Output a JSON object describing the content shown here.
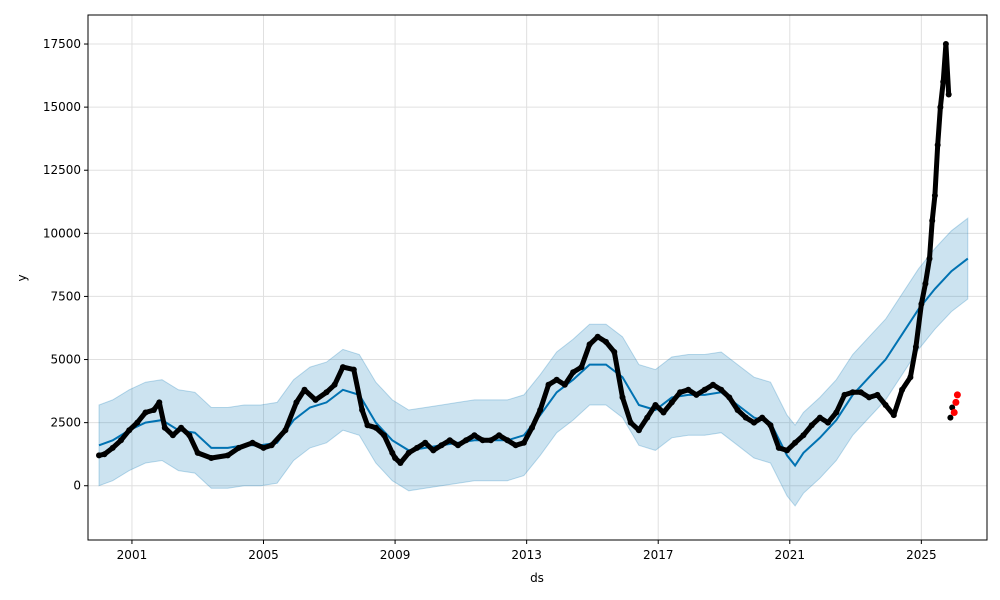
{
  "chart_data": {
    "type": "line",
    "xlabel": "ds",
    "ylabel": "y",
    "x_range": [
      "1999-09-01",
      "2026-12-31"
    ],
    "y_range": [
      -2150,
      18650
    ],
    "x_ticks": [
      "2001",
      "2005",
      "2009",
      "2013",
      "2017",
      "2021",
      "2025"
    ],
    "x_tick_dates": [
      "2001-01-01",
      "2005-01-01",
      "2009-01-01",
      "2013-01-01",
      "2017-01-01",
      "2021-01-01",
      "2025-01-01"
    ],
    "y_ticks": [
      0,
      2500,
      5000,
      7500,
      10000,
      12500,
      15000,
      17500
    ],
    "y_tick_labels": [
      "0",
      "2500",
      "5000",
      "7500",
      "10000",
      "12500",
      "15000",
      "17500"
    ],
    "grid": true,
    "colors": {
      "observed": "#000000",
      "forecast_line": "#0072B2",
      "interval": "#0072B2",
      "highlight": "#ff0000",
      "grid": "#e0e0e0"
    },
    "observed": [
      [
        "2000-01-01",
        1200
      ],
      [
        "2000-03-01",
        1250
      ],
      [
        "2000-06-01",
        1500
      ],
      [
        "2000-09-01",
        1800
      ],
      [
        "2000-12-01",
        2200
      ],
      [
        "2001-03-01",
        2500
      ],
      [
        "2001-06-01",
        2900
      ],
      [
        "2001-09-01",
        3000
      ],
      [
        "2001-11-01",
        3300
      ],
      [
        "2002-01-01",
        2300
      ],
      [
        "2002-04-01",
        2000
      ],
      [
        "2002-07-01",
        2300
      ],
      [
        "2002-10-01",
        2000
      ],
      [
        "2003-01-01",
        1300
      ],
      [
        "2003-06-01",
        1100
      ],
      [
        "2003-12-01",
        1200
      ],
      [
        "2004-04-01",
        1500
      ],
      [
        "2004-09-01",
        1700
      ],
      [
        "2005-01-01",
        1500
      ],
      [
        "2005-04-01",
        1600
      ],
      [
        "2005-09-01",
        2200
      ],
      [
        "2006-01-01",
        3300
      ],
      [
        "2006-04-01",
        3800
      ],
      [
        "2006-08-01",
        3400
      ],
      [
        "2006-12-01",
        3700
      ],
      [
        "2007-03-01",
        4000
      ],
      [
        "2007-06-01",
        4700
      ],
      [
        "2007-10-01",
        4600
      ],
      [
        "2008-01-01",
        3000
      ],
      [
        "2008-03-01",
        2400
      ],
      [
        "2008-06-01",
        2300
      ],
      [
        "2008-09-01",
        2000
      ],
      [
        "2008-12-01",
        1300
      ],
      [
        "2009-01-01",
        1100
      ],
      [
        "2009-03-01",
        900
      ],
      [
        "2009-06-01",
        1300
      ],
      [
        "2009-09-01",
        1500
      ],
      [
        "2009-12-01",
        1700
      ],
      [
        "2010-03-01",
        1400
      ],
      [
        "2010-06-01",
        1600
      ],
      [
        "2010-09-01",
        1800
      ],
      [
        "2010-12-01",
        1600
      ],
      [
        "2011-03-01",
        1800
      ],
      [
        "2011-06-01",
        2000
      ],
      [
        "2011-09-01",
        1800
      ],
      [
        "2011-12-01",
        1800
      ],
      [
        "2012-03-01",
        2000
      ],
      [
        "2012-06-01",
        1800
      ],
      [
        "2012-09-01",
        1600
      ],
      [
        "2012-12-01",
        1700
      ],
      [
        "2013-03-01",
        2300
      ],
      [
        "2013-06-01",
        3000
      ],
      [
        "2013-09-01",
        4000
      ],
      [
        "2013-12-01",
        4200
      ],
      [
        "2014-03-01",
        4000
      ],
      [
        "2014-06-01",
        4500
      ],
      [
        "2014-09-01",
        4700
      ],
      [
        "2014-12-01",
        5600
      ],
      [
        "2015-03-01",
        5900
      ],
      [
        "2015-06-01",
        5700
      ],
      [
        "2015-09-01",
        5300
      ],
      [
        "2015-12-01",
        3500
      ],
      [
        "2016-03-01",
        2500
      ],
      [
        "2016-06-01",
        2200
      ],
      [
        "2016-09-01",
        2700
      ],
      [
        "2016-12-01",
        3200
      ],
      [
        "2017-03-01",
        2900
      ],
      [
        "2017-06-01",
        3300
      ],
      [
        "2017-09-01",
        3700
      ],
      [
        "2017-12-01",
        3800
      ],
      [
        "2018-03-01",
        3600
      ],
      [
        "2018-06-01",
        3800
      ],
      [
        "2018-09-01",
        4000
      ],
      [
        "2018-12-01",
        3800
      ],
      [
        "2019-03-01",
        3500
      ],
      [
        "2019-06-01",
        3000
      ],
      [
        "2019-09-01",
        2700
      ],
      [
        "2019-12-01",
        2500
      ],
      [
        "2020-03-01",
        2700
      ],
      [
        "2020-06-01",
        2400
      ],
      [
        "2020-09-01",
        1500
      ],
      [
        "2020-12-01",
        1400
      ],
      [
        "2021-03-01",
        1700
      ],
      [
        "2021-06-01",
        2000
      ],
      [
        "2021-09-01",
        2400
      ],
      [
        "2021-12-01",
        2700
      ],
      [
        "2022-03-01",
        2500
      ],
      [
        "2022-06-01",
        2900
      ],
      [
        "2022-09-01",
        3600
      ],
      [
        "2022-12-01",
        3700
      ],
      [
        "2023-03-01",
        3700
      ],
      [
        "2023-06-01",
        3500
      ],
      [
        "2023-09-01",
        3600
      ],
      [
        "2023-12-01",
        3200
      ],
      [
        "2024-03-01",
        2800
      ],
      [
        "2024-06-01",
        3800
      ],
      [
        "2024-09-01",
        4300
      ],
      [
        "2024-11-01",
        5500
      ],
      [
        "2025-01-01",
        7200
      ],
      [
        "2025-02-15",
        8000
      ],
      [
        "2025-04-01",
        9000
      ],
      [
        "2025-05-01",
        10500
      ],
      [
        "2025-06-01",
        11500
      ],
      [
        "2025-07-01",
        13500
      ],
      [
        "2025-08-01",
        15000
      ],
      [
        "2025-09-01",
        16000
      ],
      [
        "2025-10-01",
        17500
      ],
      [
        "2025-11-01",
        15500
      ],
      [
        "2025-11-20",
        2700
      ],
      [
        "2025-12-10",
        3100
      ]
    ],
    "highlighted": [
      [
        "2026-01-01",
        2900
      ],
      [
        "2026-01-20",
        3300
      ],
      [
        "2026-02-05",
        3600
      ]
    ],
    "forecast": [
      [
        "2000-01-01",
        1600
      ],
      [
        "2000-06-01",
        1800
      ],
      [
        "2000-12-01",
        2200
      ],
      [
        "2001-06-01",
        2500
      ],
      [
        "2001-12-01",
        2600
      ],
      [
        "2002-06-01",
        2200
      ],
      [
        "2002-12-01",
        2100
      ],
      [
        "2003-06-01",
        1500
      ],
      [
        "2003-12-01",
        1500
      ],
      [
        "2004-06-01",
        1600
      ],
      [
        "2004-12-01",
        1600
      ],
      [
        "2005-06-01",
        1700
      ],
      [
        "2005-12-01",
        2600
      ],
      [
        "2006-06-01",
        3100
      ],
      [
        "2006-12-01",
        3300
      ],
      [
        "2007-06-01",
        3800
      ],
      [
        "2007-12-01",
        3600
      ],
      [
        "2008-06-01",
        2500
      ],
      [
        "2008-12-01",
        1800
      ],
      [
        "2009-06-01",
        1400
      ],
      [
        "2009-12-01",
        1500
      ],
      [
        "2010-06-01",
        1600
      ],
      [
        "2010-12-01",
        1700
      ],
      [
        "2011-06-01",
        1800
      ],
      [
        "2011-12-01",
        1800
      ],
      [
        "2012-06-01",
        1800
      ],
      [
        "2012-12-01",
        2000
      ],
      [
        "2013-06-01",
        2800
      ],
      [
        "2013-12-01",
        3700
      ],
      [
        "2014-06-01",
        4200
      ],
      [
        "2014-12-01",
        4800
      ],
      [
        "2015-06-01",
        4800
      ],
      [
        "2015-12-01",
        4300
      ],
      [
        "2016-06-01",
        3200
      ],
      [
        "2016-12-01",
        3000
      ],
      [
        "2017-06-01",
        3500
      ],
      [
        "2017-12-01",
        3600
      ],
      [
        "2018-06-01",
        3600
      ],
      [
        "2018-12-01",
        3700
      ],
      [
        "2019-06-01",
        3200
      ],
      [
        "2019-12-01",
        2700
      ],
      [
        "2020-06-01",
        2500
      ],
      [
        "2020-12-01",
        1200
      ],
      [
        "2021-03-01",
        800
      ],
      [
        "2021-06-01",
        1300
      ],
      [
        "2021-12-01",
        1900
      ],
      [
        "2022-06-01",
        2600
      ],
      [
        "2022-12-01",
        3600
      ],
      [
        "2023-06-01",
        4300
      ],
      [
        "2023-12-01",
        5000
      ],
      [
        "2024-06-01",
        6000
      ],
      [
        "2024-12-01",
        7000
      ],
      [
        "2025-06-01",
        7800
      ],
      [
        "2025-12-01",
        8500
      ],
      [
        "2026-06-01",
        9000
      ]
    ],
    "interval_halfwidth": 1600
  }
}
